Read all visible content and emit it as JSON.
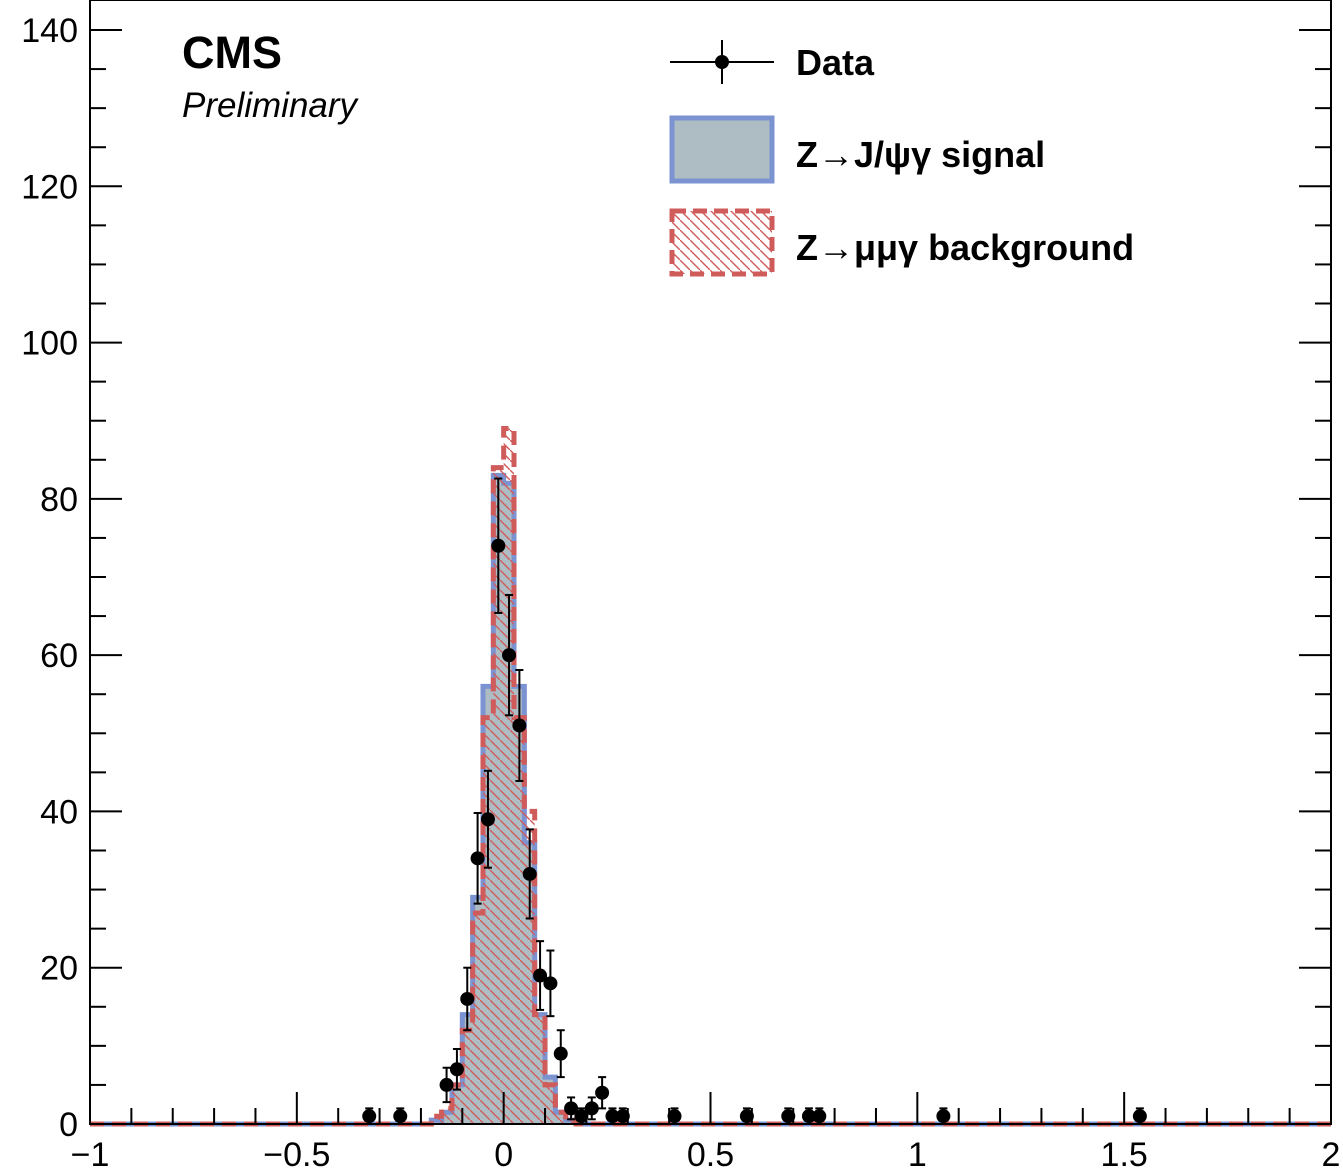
{
  "chart_data": {
    "type": "histogram",
    "title": "",
    "labels": {
      "experiment": "CMS",
      "status": "Preliminary"
    },
    "xlabel": "",
    "ylabel": "",
    "xlim": [
      -1,
      2
    ],
    "ylim": [
      0,
      140
    ],
    "log_scale": false,
    "grid": false,
    "legend_placement": "top-right",
    "x_tick_labels": [
      "−1",
      "−0.5",
      "0",
      "0.5",
      "1",
      "1.5",
      "2"
    ],
    "x_ticks": [
      -1,
      -0.5,
      0,
      0.5,
      1,
      1.5,
      2
    ],
    "y_tick_labels": [
      "0",
      "20",
      "40",
      "60",
      "80",
      "100",
      "120",
      "140"
    ],
    "y_ticks": [
      0,
      20,
      40,
      60,
      80,
      100,
      120,
      140
    ],
    "series": [
      {
        "name": "Data",
        "kind": "points",
        "color": "#000000",
        "points": [
          {
            "x": -0.325,
            "y": 1,
            "err": 1
          },
          {
            "x": -0.25,
            "y": 1,
            "err": 1
          },
          {
            "x": -0.138,
            "y": 5,
            "err": 2.2
          },
          {
            "x": -0.113,
            "y": 7,
            "err": 2.6
          },
          {
            "x": -0.088,
            "y": 16,
            "err": 4
          },
          {
            "x": -0.063,
            "y": 34,
            "err": 5.8
          },
          {
            "x": -0.038,
            "y": 39,
            "err": 6.2
          },
          {
            "x": -0.013,
            "y": 74,
            "err": 8.6
          },
          {
            "x": 0.013,
            "y": 60,
            "err": 7.7
          },
          {
            "x": 0.038,
            "y": 51,
            "err": 7.1
          },
          {
            "x": 0.063,
            "y": 32,
            "err": 5.7
          },
          {
            "x": 0.088,
            "y": 19,
            "err": 4.4
          },
          {
            "x": 0.113,
            "y": 18,
            "err": 4.2
          },
          {
            "x": 0.138,
            "y": 9,
            "err": 3
          },
          {
            "x": 0.163,
            "y": 2,
            "err": 1.4
          },
          {
            "x": 0.188,
            "y": 1,
            "err": 1
          },
          {
            "x": 0.213,
            "y": 2,
            "err": 1.4
          },
          {
            "x": 0.238,
            "y": 4,
            "err": 2
          },
          {
            "x": 0.263,
            "y": 1,
            "err": 1
          },
          {
            "x": 0.288,
            "y": 1,
            "err": 1
          },
          {
            "x": 0.413,
            "y": 1,
            "err": 1
          },
          {
            "x": 0.588,
            "y": 1,
            "err": 1
          },
          {
            "x": 0.688,
            "y": 1,
            "err": 1
          },
          {
            "x": 0.738,
            "y": 1,
            "err": 1
          },
          {
            "x": 0.763,
            "y": 1,
            "err": 1
          },
          {
            "x": 1.063,
            "y": 1,
            "err": 1
          },
          {
            "x": 1.538,
            "y": 1,
            "err": 1
          }
        ]
      },
      {
        "name": "Z→J/ψγ signal",
        "kind": "filled-histogram",
        "fill": "#aebcc4",
        "line": "#7b93d1",
        "bin_edges": [
          -0.2,
          -0.175,
          -0.15,
          -0.125,
          -0.1,
          -0.075,
          -0.05,
          -0.025,
          0,
          0.025,
          0.05,
          0.075,
          0.1,
          0.125,
          0.15,
          0.175,
          0.2
        ],
        "values": [
          0,
          0.5,
          1.5,
          5,
          14,
          29,
          56,
          83,
          82,
          56,
          36,
          14,
          6,
          1.5,
          0.5,
          0
        ]
      },
      {
        "name": "Z→μμγ background",
        "kind": "hatched-histogram",
        "line": "#d05b5b",
        "hatch": "#d05b5b",
        "bin_edges": [
          -0.2,
          -0.175,
          -0.15,
          -0.125,
          -0.1,
          -0.075,
          -0.05,
          -0.025,
          0,
          0.025,
          0.05,
          0.075,
          0.1,
          0.125,
          0.15,
          0.175,
          0.2
        ],
        "values": [
          0,
          1,
          2,
          5,
          12,
          27,
          52,
          84,
          89,
          52,
          40,
          14,
          5,
          1.5,
          0.5,
          0
        ]
      }
    ]
  }
}
